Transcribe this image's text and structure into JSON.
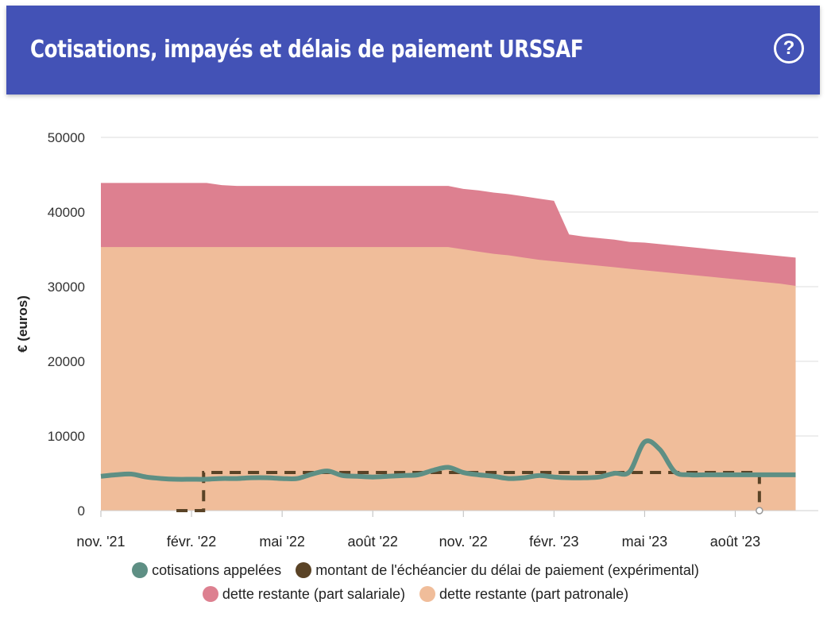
{
  "header": {
    "title": "Cotisations, impayés et délais de paiement URSSAF",
    "help_symbol": "?"
  },
  "chart_data": {
    "type": "area",
    "ylabel": "€ (euros)",
    "ylim": [
      0,
      50000
    ],
    "yticks": [
      0,
      10000,
      20000,
      30000,
      40000,
      50000
    ],
    "x_start": "2021-11",
    "x_end": "2023-10",
    "xticks": [
      {
        "label": "nov. '21",
        "month": 0
      },
      {
        "label": "févr. '22",
        "month": 3
      },
      {
        "label": "mai '22",
        "month": 6
      },
      {
        "label": "août '22",
        "month": 9
      },
      {
        "label": "nov. '22",
        "month": 12
      },
      {
        "label": "févr. '23",
        "month": 15
      },
      {
        "label": "mai '23",
        "month": 18
      },
      {
        "label": "août '23",
        "month": 21
      }
    ],
    "grid": true,
    "legend_position": "bottom",
    "x": [
      0,
      0.5,
      1,
      1.5,
      2,
      2.5,
      3,
      3.5,
      4,
      4.5,
      5,
      5.5,
      6,
      6.5,
      7,
      7.5,
      8,
      8.5,
      9,
      9.5,
      10,
      10.5,
      11,
      11.5,
      12,
      12.5,
      13,
      13.5,
      14,
      14.5,
      15,
      15.5,
      16,
      16.5,
      17,
      17.5,
      18,
      18.5,
      19,
      19.5,
      20,
      20.5,
      21,
      21.5,
      22,
      22.5,
      23
    ],
    "series": [
      {
        "name": "dette restante (part patronale)",
        "color": "#f0bd9a",
        "values": [
          35300,
          35300,
          35300,
          35300,
          35300,
          35300,
          35300,
          35300,
          35300,
          35300,
          35300,
          35300,
          35300,
          35300,
          35300,
          35300,
          35300,
          35300,
          35300,
          35300,
          35300,
          35300,
          35300,
          35300,
          35000,
          34700,
          34400,
          34200,
          33900,
          33600,
          33400,
          33200,
          33000,
          32800,
          32600,
          32400,
          32200,
          32000,
          31800,
          31600,
          31400,
          31200,
          31000,
          30800,
          30600,
          30400,
          30100
        ]
      },
      {
        "name": "dette restante (part salariale)",
        "color": "#dd8090",
        "values": [
          43900,
          43900,
          43900,
          43900,
          43900,
          43900,
          43900,
          43900,
          43600,
          43500,
          43500,
          43500,
          43500,
          43500,
          43500,
          43500,
          43500,
          43500,
          43500,
          43500,
          43500,
          43500,
          43500,
          43500,
          43100,
          42900,
          42600,
          42400,
          42100,
          41800,
          41500,
          37000,
          36700,
          36500,
          36300,
          36000,
          35900,
          35700,
          35500,
          35300,
          35100,
          34900,
          34700,
          34500,
          34300,
          34100,
          33900
        ]
      },
      {
        "name": "cotisations appelées",
        "color": "#5e8f84",
        "values": [
          4600,
          4800,
          4900,
          4500,
          4300,
          4200,
          4200,
          4200,
          4300,
          4300,
          4400,
          4400,
          4300,
          4300,
          4900,
          5300,
          4700,
          4600,
          4500,
          4600,
          4700,
          4800,
          5400,
          5800,
          5100,
          4800,
          4600,
          4300,
          4400,
          4700,
          4500,
          4400,
          4400,
          4500,
          5000,
          5200,
          9200,
          8200,
          5200,
          4800,
          4800,
          4800,
          4800,
          4800,
          4800,
          4800,
          4800
        ]
      },
      {
        "name": "montant de l'échéancier du délai de paiement (expérimental)",
        "color": "#5a4326",
        "x": [
          2.5,
          3.4,
          3.4,
          21.8,
          21.8
        ],
        "values": [
          0,
          0,
          5100,
          5100,
          0
        ]
      }
    ]
  }
}
